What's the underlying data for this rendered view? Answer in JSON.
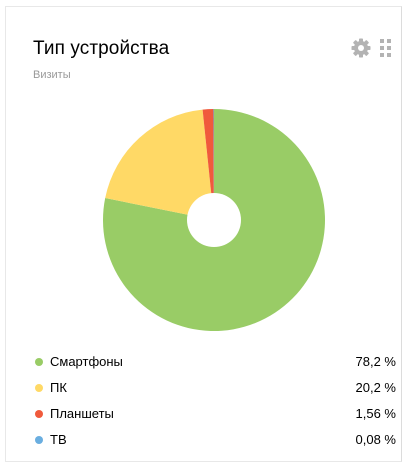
{
  "widget": {
    "title": "Тип устройства",
    "subtitle": "Визиты",
    "icons": [
      "gear-icon",
      "drag-handle-icon"
    ]
  },
  "chart_data": {
    "type": "pie",
    "style": "donut",
    "categories": [
      "Смартфоны",
      "ПК",
      "Планшеты",
      "ТВ"
    ],
    "values": [
      78.2,
      20.2,
      1.56,
      0.08
    ],
    "value_labels": [
      "78,2 %",
      "20,2 %",
      "1,56 %",
      "0,08 %"
    ],
    "colors": [
      "#99cc66",
      "#ffd966",
      "#f05a3c",
      "#6aaee0"
    ],
    "legend_placement": "bottom"
  },
  "legend": [
    {
      "label": "Смартфоны",
      "value": "78,2 %",
      "color": "#99cc66"
    },
    {
      "label": "ПК",
      "value": "20,2 %",
      "color": "#ffd966"
    },
    {
      "label": "Планшеты",
      "value": "1,56 %",
      "color": "#f05a3c"
    },
    {
      "label": "ТВ",
      "value": "0,08 %",
      "color": "#6aaee0"
    }
  ]
}
